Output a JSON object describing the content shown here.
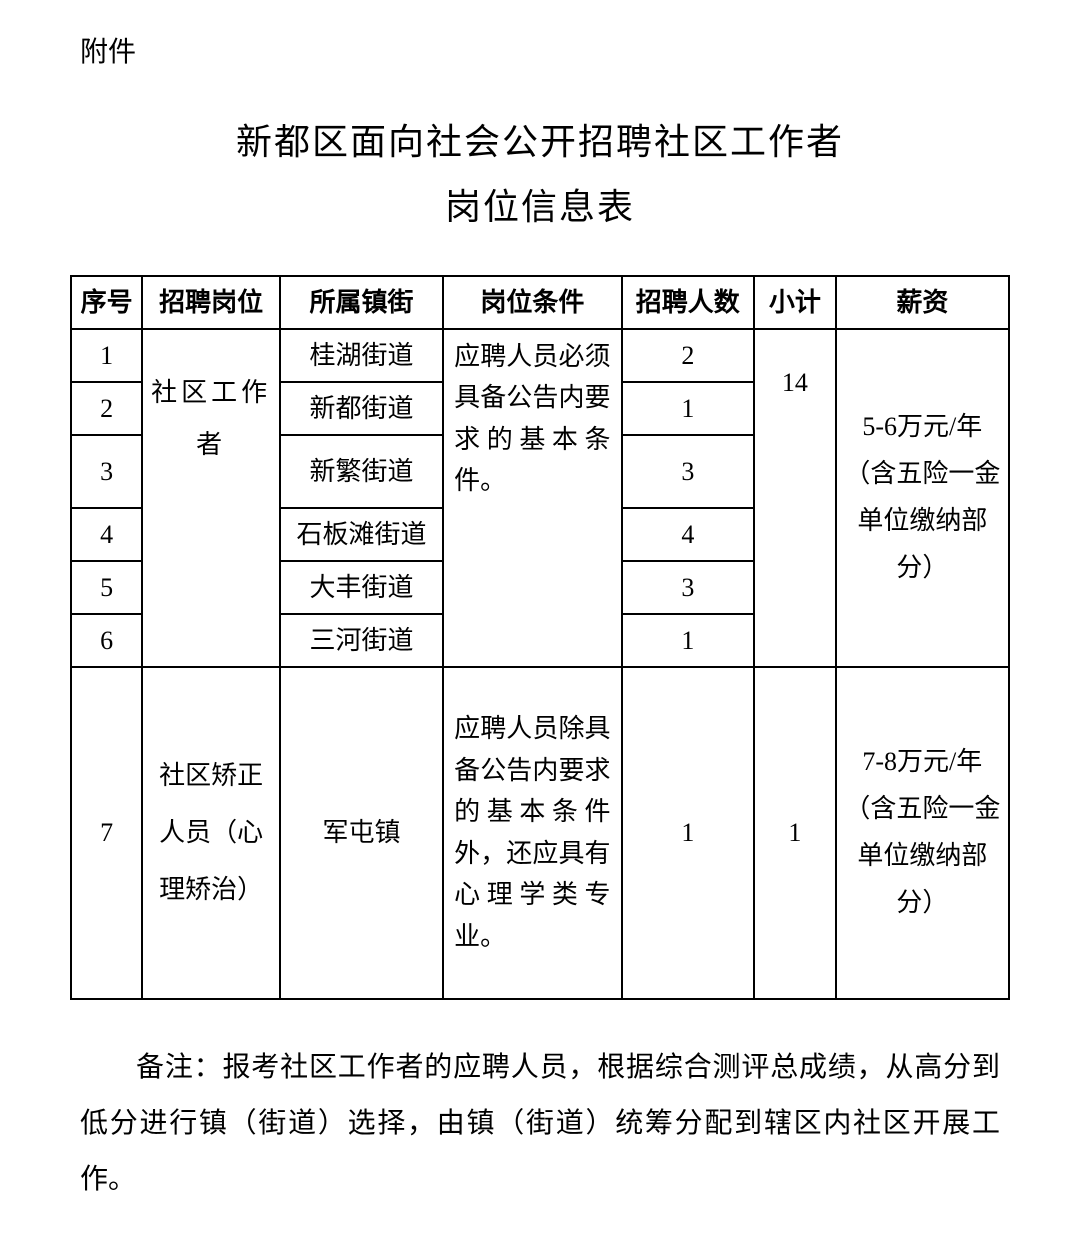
{
  "attachment_label": "附件",
  "title_line1": "新都区面向社会公开招聘社区工作者",
  "title_line2": "岗位信息表",
  "columns": {
    "seq": "序号",
    "position": "招聘岗位",
    "township": "所属镇街",
    "condition": "岗位条件",
    "count": "招聘人数",
    "subtotal": "小计",
    "salary": "薪资"
  },
  "group1": {
    "position": "社区工作者",
    "condition": "应聘人员必须具备公告内要求的基本条件。",
    "subtotal": "14",
    "salary": "5-6万元/年（含五险一金单位缴纳部分）",
    "rows": [
      {
        "seq": "1",
        "township": "桂湖街道",
        "count": "2"
      },
      {
        "seq": "2",
        "township": "新都街道",
        "count": "1"
      },
      {
        "seq": "3",
        "township": "新繁街道",
        "count": "3"
      },
      {
        "seq": "4",
        "township": "石板滩街道",
        "count": "4"
      },
      {
        "seq": "5",
        "township": "大丰街道",
        "count": "3"
      },
      {
        "seq": "6",
        "township": "三河街道",
        "count": "1"
      }
    ]
  },
  "group2": {
    "seq": "7",
    "position": "社区矫正人员（心理矫治）",
    "township": "军屯镇",
    "condition": "应聘人员除具备公告内要求的基本条件外，还应具有心理学类专业。",
    "count": "1",
    "subtotal": "1",
    "salary": "7-8万元/年（含五险一金单位缴纳部分）"
  },
  "note": "备注：报考社区工作者的应聘人员，根据综合测评总成绩，从高分到低分进行镇（街道）选择，由镇（街道）统筹分配到辖区内社区开展工作。"
}
